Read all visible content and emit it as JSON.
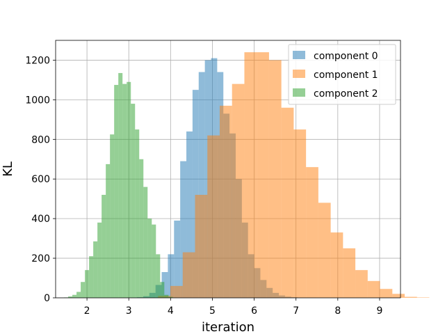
{
  "chart_data": {
    "type": "histogram",
    "title": "",
    "xlabel": "iteration",
    "ylabel": "KL",
    "xlim": [
      1.25,
      9.5
    ],
    "ylim": [
      0,
      1300
    ],
    "xticks": [
      "2",
      "3",
      "4",
      "5",
      "6",
      "7",
      "8",
      "9"
    ],
    "yticks": [
      "0",
      "200",
      "400",
      "600",
      "800",
      "1000",
      "1200"
    ],
    "grid": true,
    "legend_position": "top-right",
    "series": [
      {
        "name": "component 0",
        "color": "#1f77b4",
        "alpha": 0.5,
        "bin_start": 3.05,
        "bin_width": 0.1475,
        "counts": [
          1,
          3,
          8,
          25,
          65,
          130,
          220,
          390,
          690,
          840,
          1050,
          1140,
          1200,
          1210,
          1140,
          930,
          830,
          600,
          380,
          220,
          150,
          90,
          50,
          25,
          12,
          6,
          3,
          1,
          1,
          1
        ]
      },
      {
        "name": "component 1",
        "color": "#ff7f0e",
        "alpha": 0.5,
        "bin_start": 3.7,
        "bin_width": 0.295,
        "counts": [
          10,
          60,
          230,
          520,
          820,
          970,
          1080,
          1240,
          1240,
          1200,
          960,
          850,
          660,
          480,
          330,
          250,
          140,
          85,
          45,
          20,
          5,
          2
        ]
      },
      {
        "name": "component 2",
        "color": "#2ca02c",
        "alpha": 0.5,
        "bin_start": 1.45,
        "bin_width": 0.1,
        "counts": [
          2,
          7,
          15,
          30,
          80,
          140,
          210,
          285,
          380,
          520,
          675,
          825,
          1075,
          1135,
          1080,
          1090,
          980,
          850,
          700,
          560,
          400,
          370,
          220,
          80,
          15,
          5,
          1
        ]
      }
    ]
  }
}
